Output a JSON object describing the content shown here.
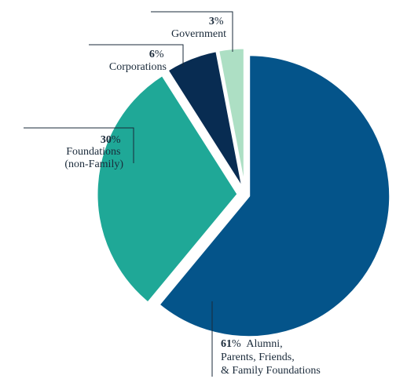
{
  "chart_data": {
    "type": "pie",
    "title": "",
    "slices": [
      {
        "label_lines": [
          "Alumni,",
          "Parents, Friends,",
          "& Family Foundations"
        ],
        "percent": 61,
        "color": "#04548a"
      },
      {
        "label_lines": [
          "Foundations",
          "(non-Family)"
        ],
        "percent": 30,
        "color": "#1fa897"
      },
      {
        "label_lines": [
          "Corporations"
        ],
        "percent": 6,
        "color": "#082c52"
      },
      {
        "label_lines": [
          "Government"
        ],
        "percent": 3,
        "color": "#addfc4"
      }
    ],
    "percent_symbol": "%",
    "legend": "none",
    "labels": "callouts with leader lines"
  }
}
